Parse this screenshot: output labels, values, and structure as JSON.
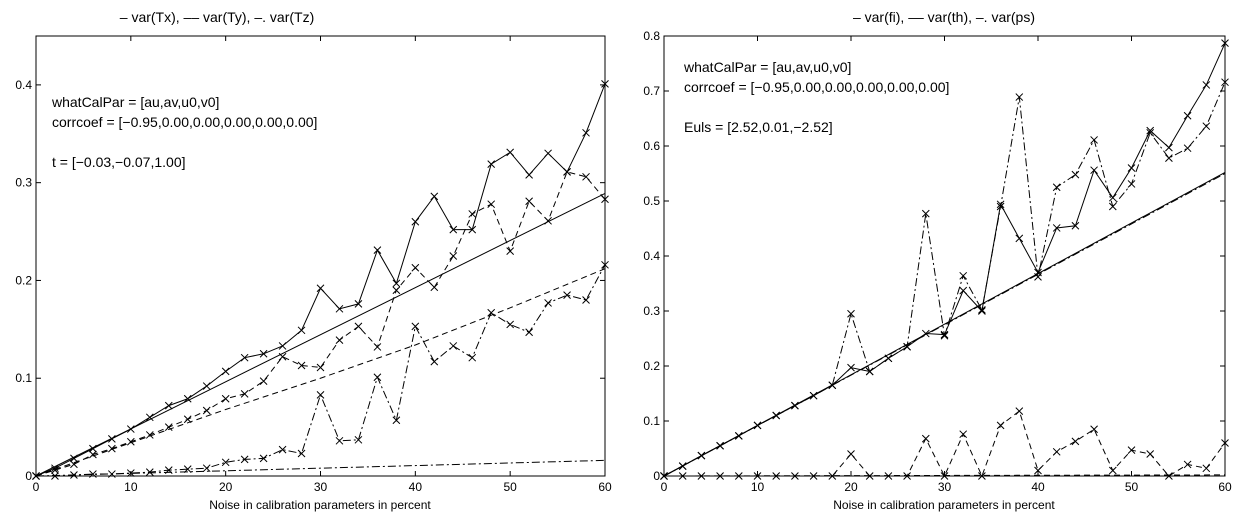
{
  "chart_data": [
    {
      "type": "line",
      "title": "– var(Tx), –– var(Ty), –. var(Tz)",
      "xlabel": "Noise in calibration parameters in percent",
      "ylabel": "",
      "xlim": [
        0,
        60
      ],
      "ylim": [
        0,
        0.45
      ],
      "xticks": [
        0,
        10,
        20,
        30,
        40,
        50,
        60
      ],
      "yticks": [
        0,
        0.1,
        0.2,
        0.3,
        0.4
      ],
      "xtick_labels": [
        "0",
        "10",
        "20",
        "30",
        "40",
        "50",
        "60"
      ],
      "ytick_labels": [
        "0",
        "0.1",
        "0.2",
        "0.3",
        "0.4"
      ],
      "grid": false,
      "annotations": [
        "whatCalPar = [au,av,u0,v0]",
        "corrcoef = [−0.95,0.00,0.00,0.00,0.00,0.00]",
        "t = [−0.03,−0.07,1.00]"
      ],
      "x": [
        0,
        2,
        4,
        6,
        8,
        10,
        12,
        14,
        16,
        18,
        20,
        22,
        24,
        26,
        28,
        30,
        32,
        34,
        36,
        38,
        40,
        42,
        44,
        46,
        48,
        50,
        52,
        54,
        56,
        58,
        60
      ],
      "series": [
        {
          "style": "solid",
          "marker": "x",
          "values": [
            0.0,
            0.008,
            0.018,
            0.028,
            0.038,
            0.048,
            0.06,
            0.072,
            0.079,
            0.092,
            0.107,
            0.121,
            0.125,
            0.133,
            0.149,
            0.192,
            0.171,
            0.176,
            0.231,
            0.197,
            0.26,
            0.286,
            0.252,
            0.252,
            0.319,
            0.331,
            0.308,
            0.33,
            0.311,
            0.351,
            0.401
          ]
        },
        {
          "style": "dashed",
          "marker": "x",
          "values": [
            0.0,
            0.006,
            0.012,
            0.022,
            0.028,
            0.035,
            0.042,
            0.05,
            0.058,
            0.067,
            0.079,
            0.084,
            0.097,
            0.122,
            0.113,
            0.111,
            0.139,
            0.153,
            0.132,
            0.19,
            0.213,
            0.193,
            0.225,
            0.268,
            0.278,
            0.23,
            0.281,
            0.261,
            0.311,
            0.306,
            0.283
          ]
        },
        {
          "style": "dashdot",
          "marker": "x",
          "values": [
            0.0,
            0.0,
            0.001,
            0.002,
            0.002,
            0.003,
            0.004,
            0.006,
            0.007,
            0.008,
            0.014,
            0.017,
            0.018,
            0.027,
            0.023,
            0.083,
            0.036,
            0.037,
            0.101,
            0.057,
            0.153,
            0.117,
            0.133,
            0.121,
            0.167,
            0.155,
            0.147,
            0.177,
            0.185,
            0.18,
            0.216
          ]
        },
        {
          "style": "solid",
          "marker": "none",
          "x": [
            0,
            60
          ],
          "values": [
            0.0,
            0.289
          ]
        },
        {
          "style": "dashed",
          "marker": "none",
          "x": [
            0,
            10,
            20,
            30,
            40,
            50,
            60
          ],
          "values": [
            0.0,
            0.034,
            0.068,
            0.1,
            0.134,
            0.172,
            0.212
          ]
        },
        {
          "style": "dashdot",
          "marker": "none",
          "x": [
            0,
            60
          ],
          "values": [
            0.0,
            0.016
          ]
        }
      ]
    },
    {
      "type": "line",
      "title": "– var(fi), –– var(th), –. var(ps)",
      "xlabel": "Noise in calibration parameters in percent",
      "ylabel": "",
      "xlim": [
        0,
        60
      ],
      "ylim": [
        0,
        0.8
      ],
      "xticks": [
        0,
        10,
        20,
        30,
        40,
        50,
        60
      ],
      "yticks": [
        0,
        0.1,
        0.2,
        0.3,
        0.4,
        0.5,
        0.6,
        0.7,
        0.8
      ],
      "xtick_labels": [
        "0",
        "10",
        "20",
        "30",
        "40",
        "50",
        "60"
      ],
      "ytick_labels": [
        "0",
        "0.1",
        "0.2",
        "0.3",
        "0.4",
        "0.5",
        "0.6",
        "0.7",
        "0.8"
      ],
      "grid": false,
      "annotations": [
        "whatCalPar = [au,av,u0,v0]",
        "corrcoef = [−0.95,0.00,0.00,0.00,0.00,0.00]",
        "Euls = [2.52,0.01,−2.52]"
      ],
      "x": [
        0,
        2,
        4,
        6,
        8,
        10,
        12,
        14,
        16,
        18,
        20,
        22,
        24,
        26,
        28,
        30,
        32,
        34,
        36,
        38,
        40,
        42,
        44,
        46,
        48,
        50,
        52,
        54,
        56,
        58,
        60
      ],
      "series": [
        {
          "style": "solid",
          "marker": "x",
          "values": [
            0.0,
            0.018,
            0.037,
            0.055,
            0.073,
            0.092,
            0.11,
            0.128,
            0.146,
            0.165,
            0.197,
            0.19,
            0.214,
            0.235,
            0.259,
            0.257,
            0.337,
            0.3,
            0.494,
            0.432,
            0.37,
            0.451,
            0.455,
            0.556,
            0.506,
            0.56,
            0.628,
            0.597,
            0.655,
            0.711,
            0.787
          ]
        },
        {
          "style": "dashed",
          "marker": "x",
          "values": [
            0.0,
            0.0,
            0.0,
            0.0,
            0.0,
            0.0,
            0.0,
            0.0,
            0.0,
            0.0,
            0.04,
            0.0,
            0.0,
            0.0,
            0.068,
            0.0,
            0.076,
            0.0,
            0.092,
            0.118,
            0.01,
            0.044,
            0.063,
            0.085,
            0.01,
            0.047,
            0.04,
            0.0,
            0.021,
            0.014,
            0.06
          ]
        },
        {
          "style": "dashdot",
          "marker": "x",
          "values": [
            0.0,
            0.018,
            0.037,
            0.055,
            0.073,
            0.092,
            0.11,
            0.128,
            0.146,
            0.165,
            0.295,
            0.19,
            0.214,
            0.235,
            0.477,
            0.255,
            0.364,
            0.302,
            0.49,
            0.689,
            0.362,
            0.525,
            0.548,
            0.611,
            0.49,
            0.531,
            0.624,
            0.578,
            0.596,
            0.636,
            0.716
          ]
        },
        {
          "style": "solid",
          "marker": "none",
          "x": [
            0,
            60
          ],
          "values": [
            0.0,
            0.552
          ]
        },
        {
          "style": "dashed",
          "marker": "none",
          "x": [
            0,
            60
          ],
          "values": [
            0.0,
            0.002
          ]
        },
        {
          "style": "dashdot",
          "marker": "none",
          "x": [
            0,
            60
          ],
          "values": [
            0.0,
            0.55
          ]
        }
      ]
    }
  ]
}
